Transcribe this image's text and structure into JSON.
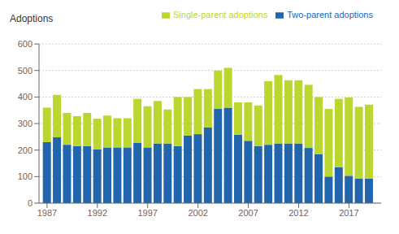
{
  "chart_data": {
    "type": "bar",
    "stacked": true,
    "ylabel": "Adoptions",
    "x": [
      1987,
      1988,
      1989,
      1990,
      1991,
      1992,
      1993,
      1994,
      1995,
      1996,
      1997,
      1998,
      1999,
      2000,
      2001,
      2002,
      2003,
      2004,
      2005,
      2006,
      2007,
      2008,
      2009,
      2010,
      2011,
      2012,
      2013,
      2014,
      2015,
      2016,
      2017,
      2018,
      2019
    ],
    "series": [
      {
        "name": "Two-parent adoptions",
        "color": "#2166ac",
        "values": [
          230,
          248,
          220,
          215,
          215,
          203,
          210,
          210,
          210,
          228,
          210,
          225,
          225,
          215,
          255,
          260,
          285,
          355,
          360,
          258,
          235,
          215,
          220,
          225,
          225,
          225,
          208,
          185,
          100,
          135,
          103,
          93,
          93
        ]
      },
      {
        "name": "Single-parent adoptions",
        "color": "#bcd630",
        "values": [
          130,
          160,
          120,
          113,
          125,
          115,
          120,
          110,
          110,
          165,
          155,
          160,
          128,
          185,
          145,
          170,
          145,
          145,
          150,
          122,
          145,
          153,
          240,
          258,
          238,
          238,
          238,
          215,
          255,
          258,
          295,
          270,
          278
        ]
      }
    ],
    "xlim": [
      1986.2,
      2020.2
    ],
    "xticks": [
      1987,
      1992,
      1997,
      2002,
      2007,
      2012,
      2017
    ],
    "ylim": [
      0,
      600
    ],
    "yticks": [
      0,
      100,
      200,
      300,
      400,
      500,
      600
    ],
    "grid": true,
    "legend": "upper right"
  }
}
